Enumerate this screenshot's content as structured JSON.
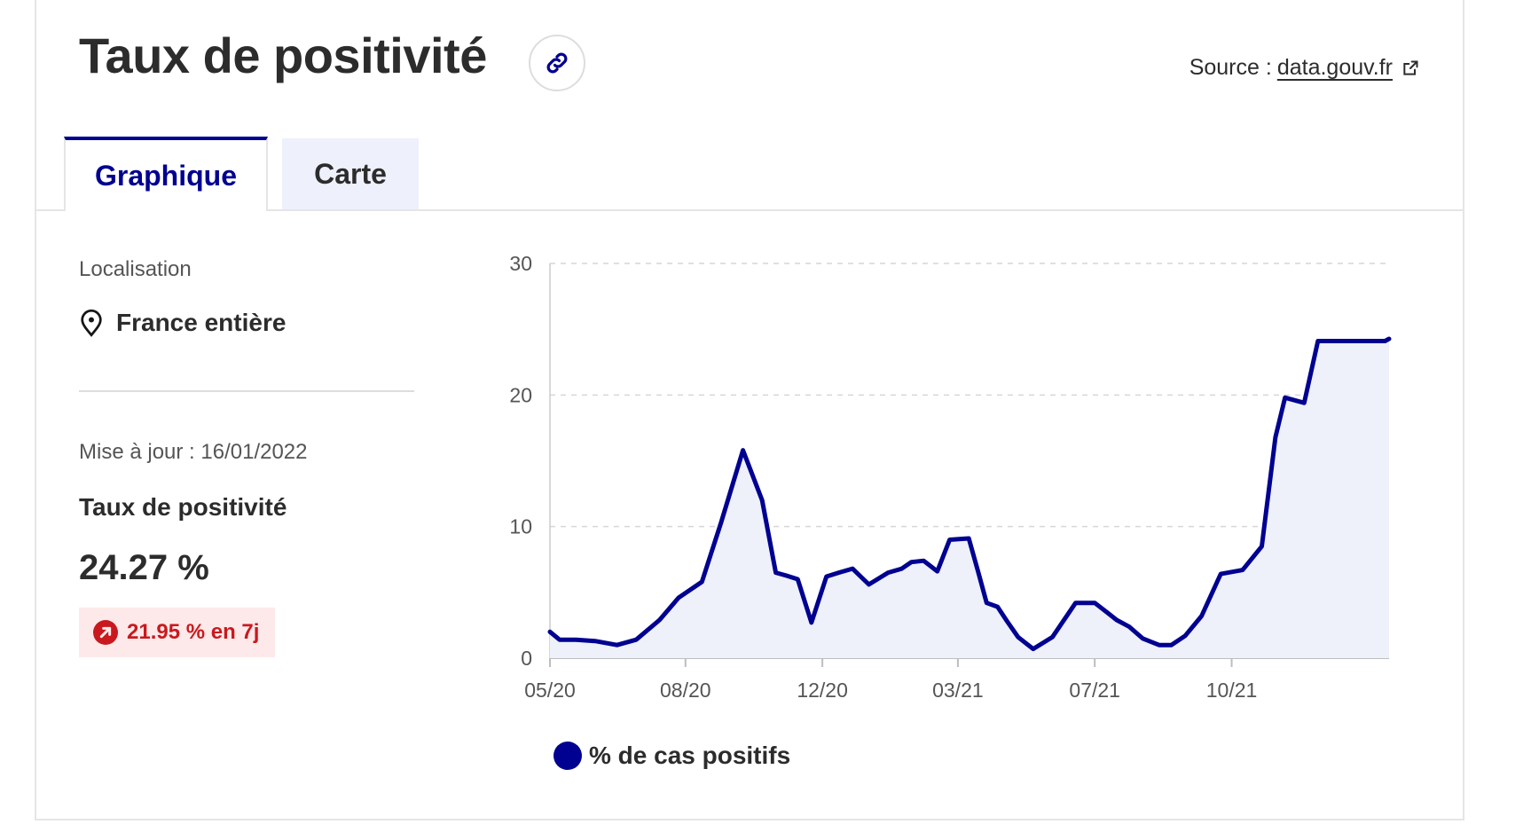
{
  "header": {
    "title": "Taux de positivité",
    "link_icon": "link-icon",
    "source_prefix": "Source :",
    "source_link": "data.gouv.fr",
    "external_icon": "external-link-icon"
  },
  "tabs": [
    {
      "label": "Graphique",
      "active": true
    },
    {
      "label": "Carte",
      "active": false
    }
  ],
  "sidebar": {
    "location_label": "Localisation",
    "location_icon": "map-pin-icon",
    "location_value": "France entière",
    "updated": "Mise à jour : 16/01/2022",
    "metric_label": "Taux de positivité",
    "metric_value": "24.27 %",
    "trend_icon": "arrow-up-right-icon",
    "trend_text": "21.95 % en 7j"
  },
  "colors": {
    "accent": "#000091",
    "badge_bg": "#fde9e9",
    "badge_text": "#c9191e",
    "area_fill": "#eef0fa"
  },
  "chart_data": {
    "type": "area",
    "ylim": [
      0,
      30
    ],
    "yticks": [
      "0",
      "10",
      "20",
      "30"
    ],
    "xticks": [
      "05/20",
      "08/20",
      "12/20",
      "03/21",
      "07/21",
      "10/21"
    ],
    "grid": true,
    "legend": {
      "position": "bottom-left",
      "entries": [
        "% de cas positifs"
      ]
    },
    "series": [
      {
        "name": "% de cas positifs",
        "x": [
          "2020-05-13",
          "2020-05-20",
          "2020-06-01",
          "2020-06-15",
          "2020-07-01",
          "2020-07-15",
          "2020-08-01",
          "2020-08-15",
          "2020-09-01",
          "2020-09-15",
          "2020-10-01",
          "2020-10-15",
          "2020-10-25",
          "2020-11-01",
          "2020-11-10",
          "2020-11-20",
          "2020-12-01",
          "2020-12-10",
          "2020-12-20",
          "2020-12-28",
          "2021-01-01",
          "2021-01-15",
          "2021-01-25",
          "2021-02-01",
          "2021-02-10",
          "2021-02-20",
          "2021-03-01",
          "2021-03-15",
          "2021-03-22",
          "2021-03-28",
          "2021-04-05",
          "2021-04-12",
          "2021-04-20",
          "2021-05-01",
          "2021-05-15",
          "2021-06-01",
          "2021-06-15",
          "2021-06-25",
          "2021-07-01",
          "2021-07-10",
          "2021-07-20",
          "2021-08-01",
          "2021-08-10",
          "2021-08-20",
          "2021-09-01",
          "2021-09-15",
          "2021-10-01",
          "2021-10-15",
          "2021-10-25",
          "2021-11-01",
          "2021-11-15",
          "2021-11-25",
          "2021-12-01",
          "2021-12-10",
          "2021-12-20",
          "2021-12-28",
          "2022-01-01",
          "2022-01-05",
          "2022-01-09",
          "2022-01-13",
          "2022-01-16"
        ],
        "y": [
          2.0,
          1.4,
          1.4,
          1.3,
          1.0,
          1.4,
          2.9,
          4.6,
          5.8,
          10.3,
          15.8,
          12.0,
          6.5,
          6.3,
          6.0,
          2.7,
          6.2,
          6.5,
          6.8,
          6.0,
          5.6,
          6.5,
          6.8,
          7.3,
          7.4,
          6.6,
          9.0,
          9.1,
          6.5,
          4.2,
          3.9,
          2.8,
          1.6,
          0.7,
          1.6,
          4.2,
          4.2,
          3.4,
          2.9,
          2.4,
          1.5,
          1.0,
          1.0,
          1.7,
          3.2,
          6.4,
          6.7,
          8.5,
          16.8,
          19.8,
          19.4,
          24.1,
          24.1,
          24.1,
          24.1,
          24.1,
          24.1,
          24.1,
          24.1,
          24.1,
          24.27
        ]
      }
    ]
  }
}
